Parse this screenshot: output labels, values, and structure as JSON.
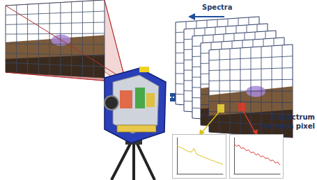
{
  "labels": {
    "spectra": "Spectra",
    "pixel_note": [
      "A spectrum",
      "for each pixel"
    ]
  },
  "chart_data": [
    {
      "type": "line",
      "color": "#d8c21a",
      "x": [
        1,
        2,
        3,
        4,
        5,
        6,
        7,
        8,
        9,
        10,
        11,
        12,
        13,
        14,
        15,
        16,
        17,
        18,
        19,
        20
      ],
      "values": [
        0.78,
        0.74,
        0.71,
        0.68,
        0.64,
        0.61,
        0.6,
        0.7,
        0.55,
        0.52,
        0.49,
        0.46,
        0.43,
        0.41,
        0.38,
        0.36,
        0.33,
        0.31,
        0.28,
        0.26
      ],
      "xlim": [
        1,
        20
      ],
      "ylim": [
        0,
        1
      ],
      "tick_labels": false,
      "grid": false
    },
    {
      "type": "line",
      "color": "#d83a2a",
      "x": [
        1,
        2,
        3,
        4,
        5,
        6,
        7,
        8,
        9,
        10,
        11,
        12,
        13,
        14,
        15,
        16,
        17,
        18,
        19,
        20
      ],
      "values": [
        0.82,
        0.76,
        0.79,
        0.7,
        0.72,
        0.64,
        0.66,
        0.58,
        0.6,
        0.52,
        0.55,
        0.47,
        0.49,
        0.42,
        0.44,
        0.36,
        0.38,
        0.3,
        0.32,
        0.24
      ],
      "xlim": [
        1,
        20
      ],
      "ylim": [
        0,
        1
      ],
      "tick_labels": false,
      "grid": false
    }
  ]
}
